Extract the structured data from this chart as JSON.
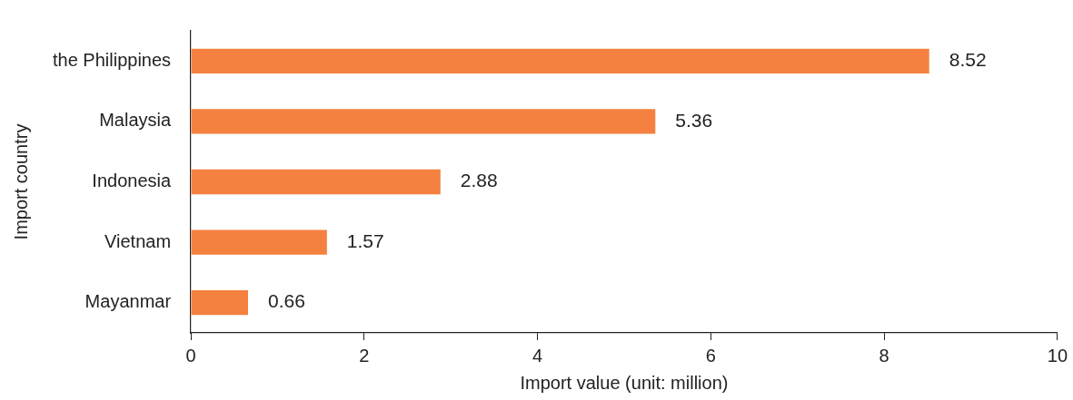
{
  "chart_data": {
    "type": "bar",
    "orientation": "horizontal",
    "xlabel": "Import value (unit: million)",
    "ylabel": "Import country",
    "categories": [
      "the Philippines",
      "Malaysia",
      "Indonesia",
      "Vietnam",
      "Mayanmar"
    ],
    "values": [
      8.52,
      5.36,
      2.88,
      1.57,
      0.66
    ],
    "color": "#f4813f",
    "xlim": [
      0,
      10
    ],
    "xticks": [
      0,
      2,
      4,
      6,
      8,
      10
    ],
    "grid": false,
    "data_labels": true
  }
}
